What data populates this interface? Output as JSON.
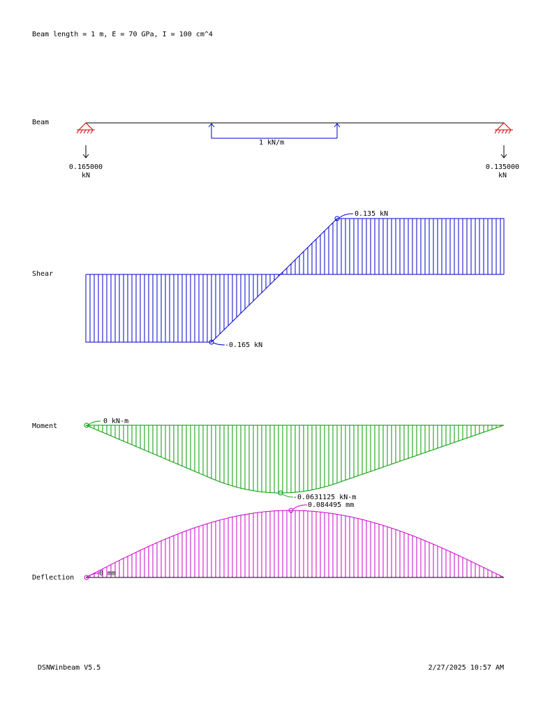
{
  "header": "Beam length = 1 m, E = 70 GPa, I = 100 cm^4",
  "beam": {
    "label": "Beam",
    "load_label": "1 kN/m",
    "load_start_m": 0.3,
    "load_end_m": 0.6,
    "left_reaction": {
      "value": "0.165000",
      "unit": "kN"
    },
    "right_reaction": {
      "value": "0.135000",
      "unit": "kN"
    }
  },
  "shear": {
    "label": "Shear",
    "max_label": "0.135 kN",
    "min_label": "-0.165 kN",
    "x": [
      0,
      0.3,
      0.6,
      1.0
    ],
    "y": [
      -0.165,
      -0.165,
      0.135,
      0.135
    ]
  },
  "moment": {
    "label": "Moment",
    "start_label": "0 kN-m",
    "min_label": "-0.0631125 kN-m",
    "min_at_m": 0.465
  },
  "deflection": {
    "label": "Deflection",
    "start_label": "0 mm",
    "max_label": "0.084495 mm",
    "max_at_m": 0.49
  },
  "footer": {
    "app": "DSNWinbeam V5.5",
    "timestamp": "2/27/2025 10:57 AM"
  },
  "colors": {
    "beam": "#000000",
    "load": "#0000cc",
    "shear": "#0000cc",
    "moment": "#009900",
    "deflection": "#cc00cc",
    "support": "#cc0000"
  }
}
